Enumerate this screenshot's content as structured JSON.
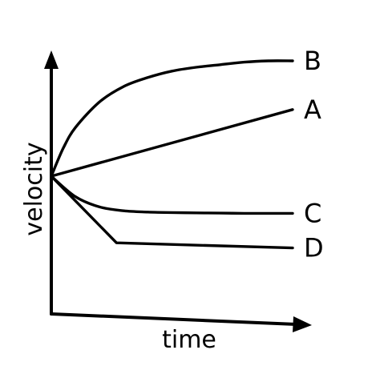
{
  "chart_data": {
    "type": "line",
    "title": "",
    "xlabel": "time",
    "ylabel": "velocity",
    "xlim": [
      0,
      10
    ],
    "ylim": [
      0,
      10
    ],
    "grid": false,
    "legend": "end-of-line labels",
    "line_color": "#000000",
    "series": [
      {
        "name": "B",
        "x": [
          0,
          0.5,
          1,
          2,
          3,
          4,
          5,
          6,
          7,
          8,
          9,
          10
        ],
        "y": [
          5.0,
          6.1,
          6.9,
          7.9,
          8.5,
          8.85,
          9.1,
          9.25,
          9.35,
          9.45,
          9.5,
          9.5
        ]
      },
      {
        "name": "A",
        "x": [
          0,
          10
        ],
        "y": [
          5.0,
          7.6
        ]
      },
      {
        "name": "C",
        "x": [
          0,
          1,
          2,
          3,
          4,
          5,
          6,
          7,
          8,
          9,
          10
        ],
        "y": [
          5.0,
          4.2,
          3.8,
          3.65,
          3.6,
          3.58,
          3.57,
          3.56,
          3.55,
          3.55,
          3.55
        ]
      },
      {
        "name": "D",
        "x": [
          0,
          2.7,
          10
        ],
        "y": [
          5.0,
          2.4,
          2.2
        ]
      }
    ]
  }
}
